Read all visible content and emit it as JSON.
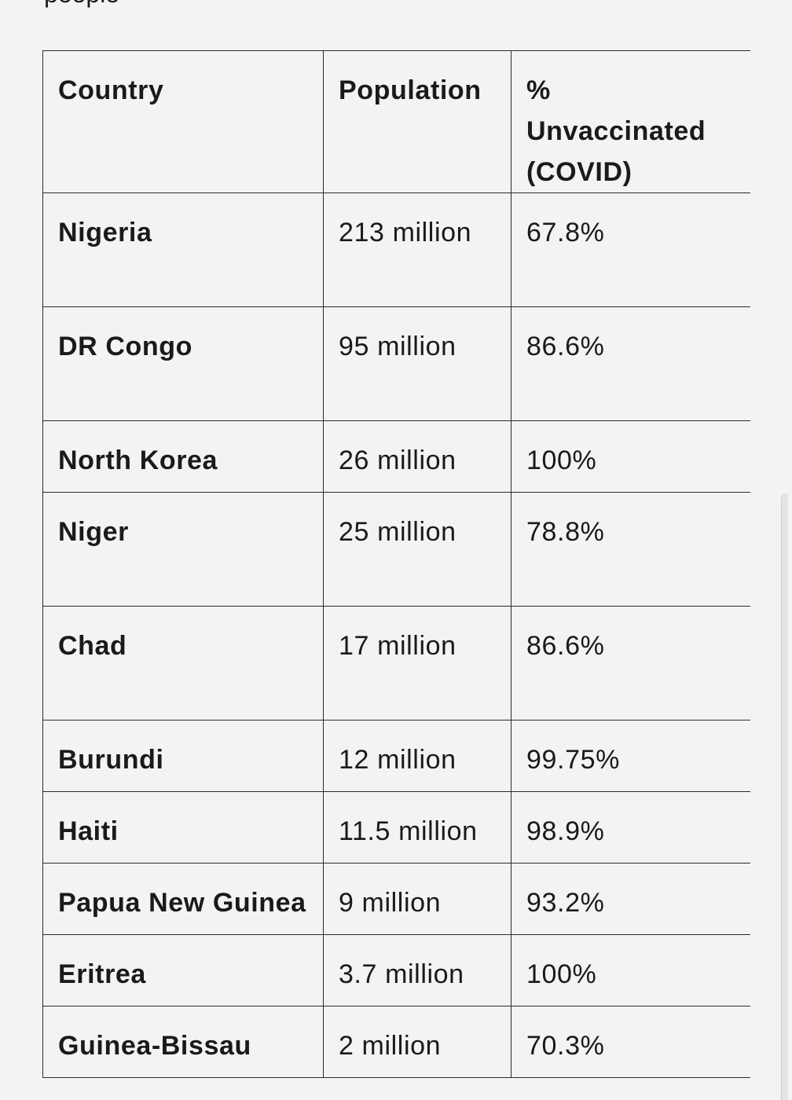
{
  "top_partial_text": "people",
  "table": {
    "headers": [
      "Country",
      "Population",
      "% Unvaccinated (COVID)"
    ],
    "rows": [
      {
        "country": "Nigeria",
        "population": "213 million",
        "unvaccinated": "67.8%"
      },
      {
        "country": "DR Congo",
        "population": "95 million",
        "unvaccinated": "86.6%"
      },
      {
        "country": "North Korea",
        "population": "26 million",
        "unvaccinated": "100%"
      },
      {
        "country": "Niger",
        "population": "25 million",
        "unvaccinated": "78.8%"
      },
      {
        "country": "Chad",
        "population": "17 million",
        "unvaccinated": "86.6%"
      },
      {
        "country": "Burundi",
        "population": "12 million",
        "unvaccinated": "99.75%"
      },
      {
        "country": "Haiti",
        "population": "11.5 million",
        "unvaccinated": "98.9%"
      },
      {
        "country": "Papua New Guinea",
        "population": "9 million",
        "unvaccinated": "93.2%"
      },
      {
        "country": "Eritrea",
        "population": "3.7 million",
        "unvaccinated": "100%"
      },
      {
        "country": "Guinea-Bissau",
        "population": "2 million",
        "unvaccinated": "70.3%"
      }
    ]
  }
}
